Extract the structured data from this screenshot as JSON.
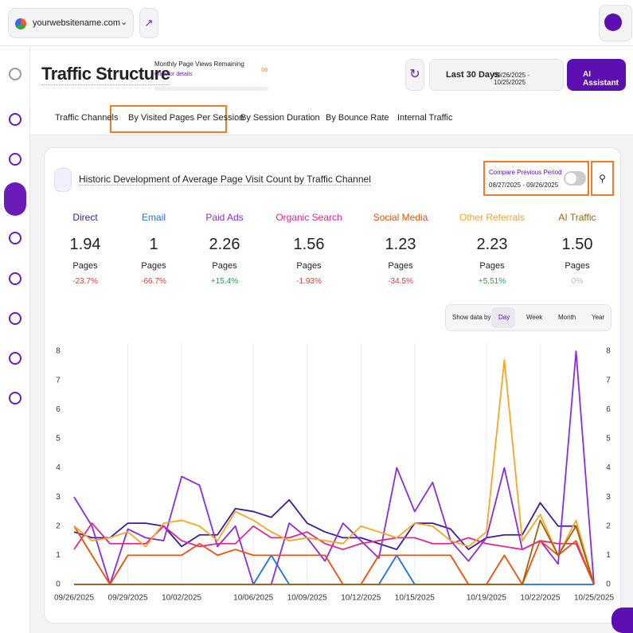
{
  "topbar": {
    "site": "yourwebsitename.com"
  },
  "header": {
    "title": "Traffic Structure",
    "quota_title": "Monthly Page Views Remaining",
    "quota_link": "Click for details",
    "quota_value": "∞",
    "range_label": "Last 30 Days",
    "range_dates": "09/26/2025 - 10/25/2025",
    "assistant": "AI Assistant"
  },
  "tabs": [
    "Traffic Channels",
    "By Visited Pages Per Session",
    "By Session Duration",
    "By Bounce Rate",
    "Internal Traffic"
  ],
  "card": {
    "title": "Historic Development of Average Page Visit Count by Traffic Channel",
    "compare_title": "Compare Previous Period",
    "compare_dates": "08/27/2025 - 09/26/2025",
    "show_by": "Show data by:",
    "periods": [
      "Day",
      "Week",
      "Month",
      "Year"
    ]
  },
  "metrics": [
    {
      "value": "1.94",
      "unit": "Pages",
      "change": "-23.7%"
    },
    {
      "value": "1",
      "unit": "Pages",
      "change": "-66.7%"
    },
    {
      "value": "2.26",
      "unit": "Pages",
      "change": "+15.4%"
    },
    {
      "value": "1.56",
      "unit": "Pages",
      "change": "-1.93%"
    },
    {
      "value": "1.23",
      "unit": "Pages",
      "change": "-34.5%"
    },
    {
      "value": "2.23",
      "unit": "Pages",
      "change": "+5.51%"
    },
    {
      "value": "1.50",
      "unit": "Pages",
      "change": "0%"
    }
  ],
  "chart_data": {
    "type": "line",
    "categories": [
      "09/26/2025",
      null,
      null,
      "09/29/2025",
      null,
      null,
      "10/02/2025",
      null,
      null,
      null,
      "10/06/2025",
      null,
      null,
      "10/09/2025",
      null,
      null,
      "10/12/2025",
      null,
      null,
      "10/15/2025",
      null,
      null,
      null,
      "10/19/2025",
      null,
      null,
      "10/22/2025",
      null,
      null,
      "10/25/2025"
    ],
    "ylim": [
      0,
      8
    ],
    "yticks": [
      0,
      1,
      2,
      3,
      4,
      5,
      6,
      7,
      8
    ],
    "y2lim": [
      0,
      8
    ],
    "y2ticks": [
      0,
      1,
      2,
      3,
      4,
      5,
      6,
      7,
      8
    ],
    "grid": "x",
    "series": [
      {
        "name": "Direct",
        "color": "#3a1a9e",
        "values": [
          1.8,
          1.6,
          1.6,
          2.1,
          2.1,
          2.0,
          1.3,
          1.7,
          1.7,
          2.6,
          2.5,
          2.3,
          2.9,
          2.1,
          1.8,
          1.6,
          1.6,
          1.4,
          1.2,
          2.1,
          2.1,
          1.9,
          1.2,
          1.6,
          1.7,
          1.7,
          2.8,
          2.0,
          2.0,
          0
        ]
      },
      {
        "name": "Email",
        "color": "#1a73e8",
        "values": [
          0,
          0,
          0,
          0,
          0,
          0,
          0,
          0,
          0,
          0,
          0,
          1,
          0,
          0,
          0,
          0,
          0,
          0,
          1,
          0,
          0,
          0,
          0,
          0,
          0,
          0,
          0,
          0,
          0,
          0
        ]
      },
      {
        "name": "Paid Ads",
        "color": "#8a2be2",
        "values": [
          3.0,
          2.0,
          0,
          1.9,
          1.6,
          1.5,
          3.7,
          3.4,
          1.3,
          2.0,
          0,
          0,
          2.1,
          1.6,
          0.8,
          2.1,
          1.5,
          0.9,
          4.0,
          2.5,
          3.5,
          1.5,
          0.8,
          1.6,
          4.0,
          1.2,
          1.5,
          0.7,
          8.0,
          0
        ]
      },
      {
        "name": "Organic Search",
        "color": "#e0288f",
        "values": [
          1.2,
          2.1,
          1.4,
          1.4,
          1.4,
          2.0,
          1.5,
          1.3,
          1.4,
          1.4,
          2.0,
          1.6,
          1.6,
          1.8,
          1.4,
          1.2,
          1.4,
          1.5,
          1.6,
          1.6,
          1.4,
          1.4,
          1.6,
          1.4,
          1.3,
          1.2,
          1.5,
          1.4,
          1.4,
          0
        ]
      },
      {
        "name": "Social Media",
        "color": "#f0500a",
        "values": [
          2.0,
          1.0,
          0,
          1.0,
          1.0,
          1.0,
          1.0,
          1.4,
          1.0,
          1.2,
          1.0,
          1.0,
          1.0,
          1.0,
          1.0,
          0,
          0,
          1.0,
          1.0,
          1.0,
          1.0,
          1.0,
          0,
          0,
          1.0,
          0,
          1.5,
          1.0,
          1.5,
          0
        ]
      },
      {
        "name": "Other Referrals",
        "color": "#f5a623",
        "values": [
          2.0,
          1.5,
          1.6,
          1.8,
          1.3,
          2.1,
          2.2,
          2.0,
          1.5,
          2.5,
          2.2,
          1.8,
          1.5,
          1.6,
          1.5,
          1.4,
          2.0,
          1.8,
          1.6,
          2.1,
          2.0,
          1.5,
          1.3,
          1.8,
          7.7,
          1.5,
          2.4,
          1.0,
          2.2,
          0
        ]
      },
      {
        "name": "AI Traffic",
        "color": "#a0620a",
        "values": [
          0,
          0,
          0,
          0,
          0,
          0,
          0,
          0,
          0,
          0,
          0,
          0,
          0,
          0,
          0,
          0,
          0,
          0,
          0,
          0,
          0,
          0,
          0,
          0,
          0,
          0,
          2.2,
          1.0,
          2.0,
          0
        ]
      }
    ]
  }
}
